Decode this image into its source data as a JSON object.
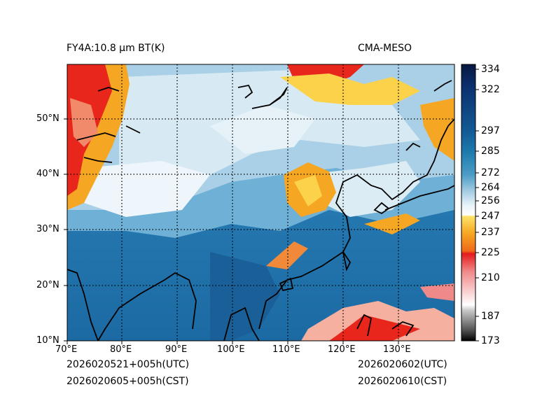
{
  "title_left": "FY4A:10.8 μm BT(K)",
  "title_right": "CMA-MESO",
  "time_utc_left": "2026020521+005h(UTC)",
  "time_cst_left": "2026020605+005h(CST)",
  "time_utc_right": "2026020602(UTC)",
  "time_cst_right": "2026020610(CST)",
  "x_ticks": [
    "70°E",
    "80°E",
    "90°E",
    "100°E",
    "110°E",
    "120°E",
    "130°E"
  ],
  "y_ticks": [
    "50°N",
    "40°N",
    "30°N",
    "20°N",
    "10°N"
  ],
  "colorbar": {
    "ticks": [
      "334",
      "322",
      "297",
      "285",
      "272",
      "264",
      "256",
      "247",
      "237",
      "225",
      "210",
      "187",
      "173"
    ],
    "values": [
      334,
      322,
      297,
      285,
      272,
      264,
      256,
      247,
      237,
      225,
      210,
      187,
      173
    ],
    "range": [
      173,
      334
    ]
  },
  "map": {
    "lon_range": [
      70,
      140
    ],
    "lat_range": [
      10,
      60
    ],
    "colors": {
      "ocean_deep": "#1f6fa8",
      "ocean_mid": "#3b8cc0",
      "cloud_light": "#d9ecf5",
      "cloud_white": "#f4f9fc",
      "cold_orange": "#f5a623",
      "cold_red": "#e8261c",
      "cold_yellow": "#fbd24a"
    }
  }
}
